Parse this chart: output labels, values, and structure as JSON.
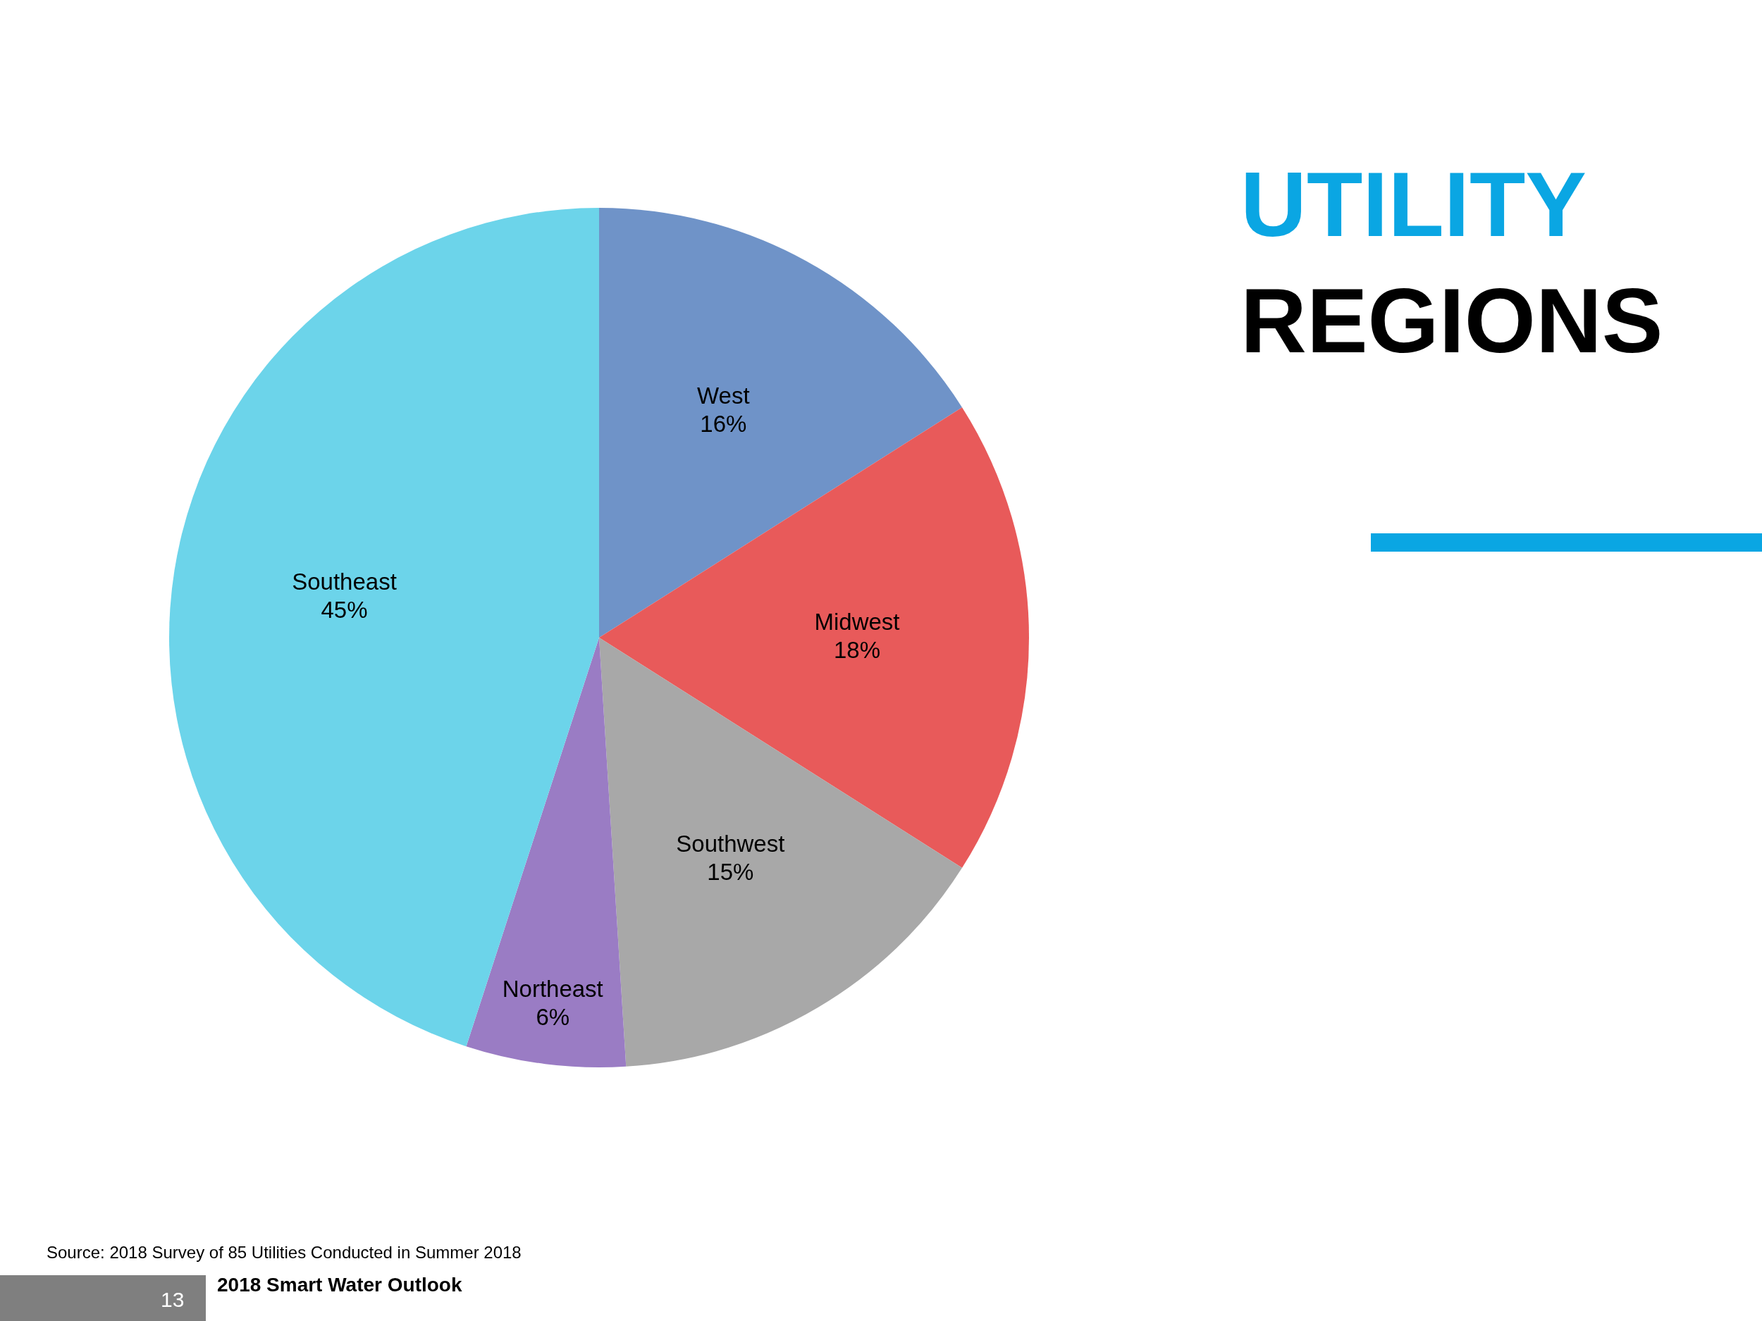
{
  "chart_data": {
    "type": "pie",
    "title": "UTILITY",
    "subtitle": "REGIONS",
    "categories": [
      "West",
      "Midwest",
      "Southwest",
      "Northeast",
      "Southeast"
    ],
    "values": [
      16,
      18,
      15,
      6,
      45
    ],
    "value_labels": [
      "16%",
      "18%",
      "15%",
      "6%",
      "45%"
    ],
    "colors": [
      "#6f93c8",
      "#e85a5a",
      "#a8a8a8",
      "#9a7cc4",
      "#6cd4ea"
    ],
    "legend": false,
    "annotations": [
      "Source: 2018 Survey of 85 Utilities Conducted in Summer 2018",
      "2018 Smart Water Outlook",
      "13"
    ]
  }
}
